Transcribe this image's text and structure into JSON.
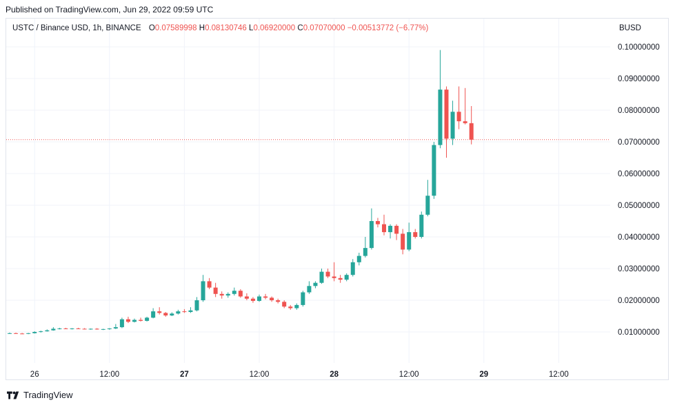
{
  "header": {
    "published": "Published on TradingView.com, Jun 29, 2022 09:59 UTC"
  },
  "legend": {
    "symbol": "USTC / Binance USD, 1h, BINANCE",
    "o_label": "O",
    "o_value": "0.07589998",
    "h_label": "H",
    "h_value": "0.08130746",
    "l_label": "L",
    "l_value": "0.06920000",
    "c_label": "C",
    "c_value": "0.07070000",
    "change": "−0.00513772 (−6.77%)"
  },
  "currency": "BUSD",
  "footer": {
    "brand": "TradingView",
    "logo_icon": "tradingview-logo-icon"
  },
  "colors": {
    "up": "#26a69a",
    "down": "#ef5350",
    "grid": "#f0f3fa",
    "price_line": "#ef5350"
  },
  "chart_data": {
    "type": "candlestick",
    "title": "USTC / Binance USD, 1h, BINANCE",
    "ylim": [
      0,
      0.105
    ],
    "y_ticks": [
      {
        "value": 0.01,
        "label": "0.01000000"
      },
      {
        "value": 0.02,
        "label": "0.02000000"
      },
      {
        "value": 0.03,
        "label": "0.03000000"
      },
      {
        "value": 0.04,
        "label": "0.04000000"
      },
      {
        "value": 0.05,
        "label": "0.05000000"
      },
      {
        "value": 0.06,
        "label": "0.06000000"
      },
      {
        "value": 0.07,
        "label": "0.07000000"
      },
      {
        "value": 0.08,
        "label": "0.08000000"
      },
      {
        "value": 0.09,
        "label": "0.09000000"
      },
      {
        "value": 0.1,
        "label": "0.10000000"
      }
    ],
    "x_ticks": [
      {
        "index": 4,
        "label": "26",
        "bold": false
      },
      {
        "index": 16,
        "label": "12:00",
        "bold": false
      },
      {
        "index": 28,
        "label": "27",
        "bold": true
      },
      {
        "index": 40,
        "label": "12:00",
        "bold": false
      },
      {
        "index": 52,
        "label": "28",
        "bold": true
      },
      {
        "index": 64,
        "label": "12:00",
        "bold": false
      },
      {
        "index": 76,
        "label": "29",
        "bold": true
      },
      {
        "index": 88,
        "label": "12:00",
        "bold": false
      }
    ],
    "last_price": 0.0707,
    "candles": [
      [
        0.0095,
        0.0098,
        0.0094,
        0.0096
      ],
      [
        0.0096,
        0.0098,
        0.0094,
        0.0095
      ],
      [
        0.0095,
        0.0097,
        0.0093,
        0.0094
      ],
      [
        0.0094,
        0.0097,
        0.0093,
        0.0096
      ],
      [
        0.0096,
        0.0102,
        0.0095,
        0.01
      ],
      [
        0.01,
        0.0104,
        0.0098,
        0.0102
      ],
      [
        0.0102,
        0.0108,
        0.0101,
        0.0105
      ],
      [
        0.0105,
        0.0115,
        0.0104,
        0.011
      ],
      [
        0.011,
        0.0113,
        0.0108,
        0.0111
      ],
      [
        0.0111,
        0.0113,
        0.0109,
        0.011
      ],
      [
        0.011,
        0.0112,
        0.0108,
        0.0111
      ],
      [
        0.0111,
        0.0113,
        0.0109,
        0.011
      ],
      [
        0.011,
        0.0112,
        0.0108,
        0.0109
      ],
      [
        0.0109,
        0.0111,
        0.0107,
        0.011
      ],
      [
        0.011,
        0.0112,
        0.0107,
        0.0108
      ],
      [
        0.0108,
        0.011,
        0.0106,
        0.0109
      ],
      [
        0.0109,
        0.0112,
        0.0107,
        0.0111
      ],
      [
        0.0111,
        0.0125,
        0.0109,
        0.0115
      ],
      [
        0.0115,
        0.0145,
        0.0112,
        0.014
      ],
      [
        0.014,
        0.0148,
        0.0128,
        0.0132
      ],
      [
        0.0132,
        0.0142,
        0.013,
        0.0138
      ],
      [
        0.0138,
        0.0145,
        0.0133,
        0.0135
      ],
      [
        0.0135,
        0.0148,
        0.0133,
        0.0145
      ],
      [
        0.0145,
        0.0175,
        0.0143,
        0.0165
      ],
      [
        0.0165,
        0.0178,
        0.0155,
        0.016
      ],
      [
        0.016,
        0.0163,
        0.0148,
        0.0152
      ],
      [
        0.0152,
        0.0162,
        0.015,
        0.0158
      ],
      [
        0.0158,
        0.017,
        0.0155,
        0.0165
      ],
      [
        0.0165,
        0.0172,
        0.016,
        0.0163
      ],
      [
        0.0163,
        0.0178,
        0.016,
        0.0168
      ],
      [
        0.0168,
        0.021,
        0.0165,
        0.02
      ],
      [
        0.02,
        0.028,
        0.0195,
        0.026
      ],
      [
        0.026,
        0.027,
        0.0235,
        0.024
      ],
      [
        0.024,
        0.0255,
        0.021,
        0.022
      ],
      [
        0.022,
        0.0228,
        0.0205,
        0.0215
      ],
      [
        0.0215,
        0.0225,
        0.0208,
        0.022
      ],
      [
        0.022,
        0.024,
        0.0215,
        0.023
      ],
      [
        0.023,
        0.0235,
        0.0208,
        0.0212
      ],
      [
        0.0212,
        0.0222,
        0.02,
        0.0205
      ],
      [
        0.0205,
        0.021,
        0.0192,
        0.0198
      ],
      [
        0.0198,
        0.0218,
        0.0195,
        0.0212
      ],
      [
        0.0212,
        0.022,
        0.0203,
        0.0208
      ],
      [
        0.0208,
        0.0212,
        0.0195,
        0.02
      ],
      [
        0.02,
        0.0205,
        0.019,
        0.0195
      ],
      [
        0.0195,
        0.02,
        0.0175,
        0.018
      ],
      [
        0.018,
        0.0185,
        0.017,
        0.0175
      ],
      [
        0.0175,
        0.019,
        0.017,
        0.0185
      ],
      [
        0.0185,
        0.023,
        0.018,
        0.0225
      ],
      [
        0.0225,
        0.026,
        0.022,
        0.0245
      ],
      [
        0.0245,
        0.026,
        0.0238,
        0.0255
      ],
      [
        0.0255,
        0.03,
        0.0252,
        0.029
      ],
      [
        0.029,
        0.03,
        0.027,
        0.0275
      ],
      [
        0.0275,
        0.032,
        0.026,
        0.027
      ],
      [
        0.027,
        0.028,
        0.0255,
        0.0265
      ],
      [
        0.0265,
        0.0285,
        0.026,
        0.028
      ],
      [
        0.028,
        0.033,
        0.0275,
        0.032
      ],
      [
        0.032,
        0.035,
        0.031,
        0.034
      ],
      [
        0.034,
        0.04,
        0.0335,
        0.0365
      ],
      [
        0.0365,
        0.049,
        0.036,
        0.045
      ],
      [
        0.045,
        0.046,
        0.043,
        0.044
      ],
      [
        0.044,
        0.047,
        0.0405,
        0.0415
      ],
      [
        0.0415,
        0.044,
        0.0395,
        0.0435
      ],
      [
        0.0435,
        0.044,
        0.039,
        0.041
      ],
      [
        0.041,
        0.0425,
        0.0345,
        0.036
      ],
      [
        0.036,
        0.0445,
        0.0355,
        0.0415
      ],
      [
        0.0415,
        0.0425,
        0.0395,
        0.04
      ],
      [
        0.04,
        0.048,
        0.0395,
        0.047
      ],
      [
        0.047,
        0.058,
        0.0465,
        0.053
      ],
      [
        0.053,
        0.07,
        0.052,
        0.069
      ],
      [
        0.069,
        0.099,
        0.068,
        0.0865
      ],
      [
        0.0865,
        0.0875,
        0.065,
        0.071
      ],
      [
        0.071,
        0.083,
        0.069,
        0.0795
      ],
      [
        0.0795,
        0.0875,
        0.074,
        0.0765
      ],
      [
        0.0765,
        0.087,
        0.0755,
        0.0759
      ],
      [
        0.0759,
        0.0813,
        0.0692,
        0.0707
      ]
    ]
  }
}
